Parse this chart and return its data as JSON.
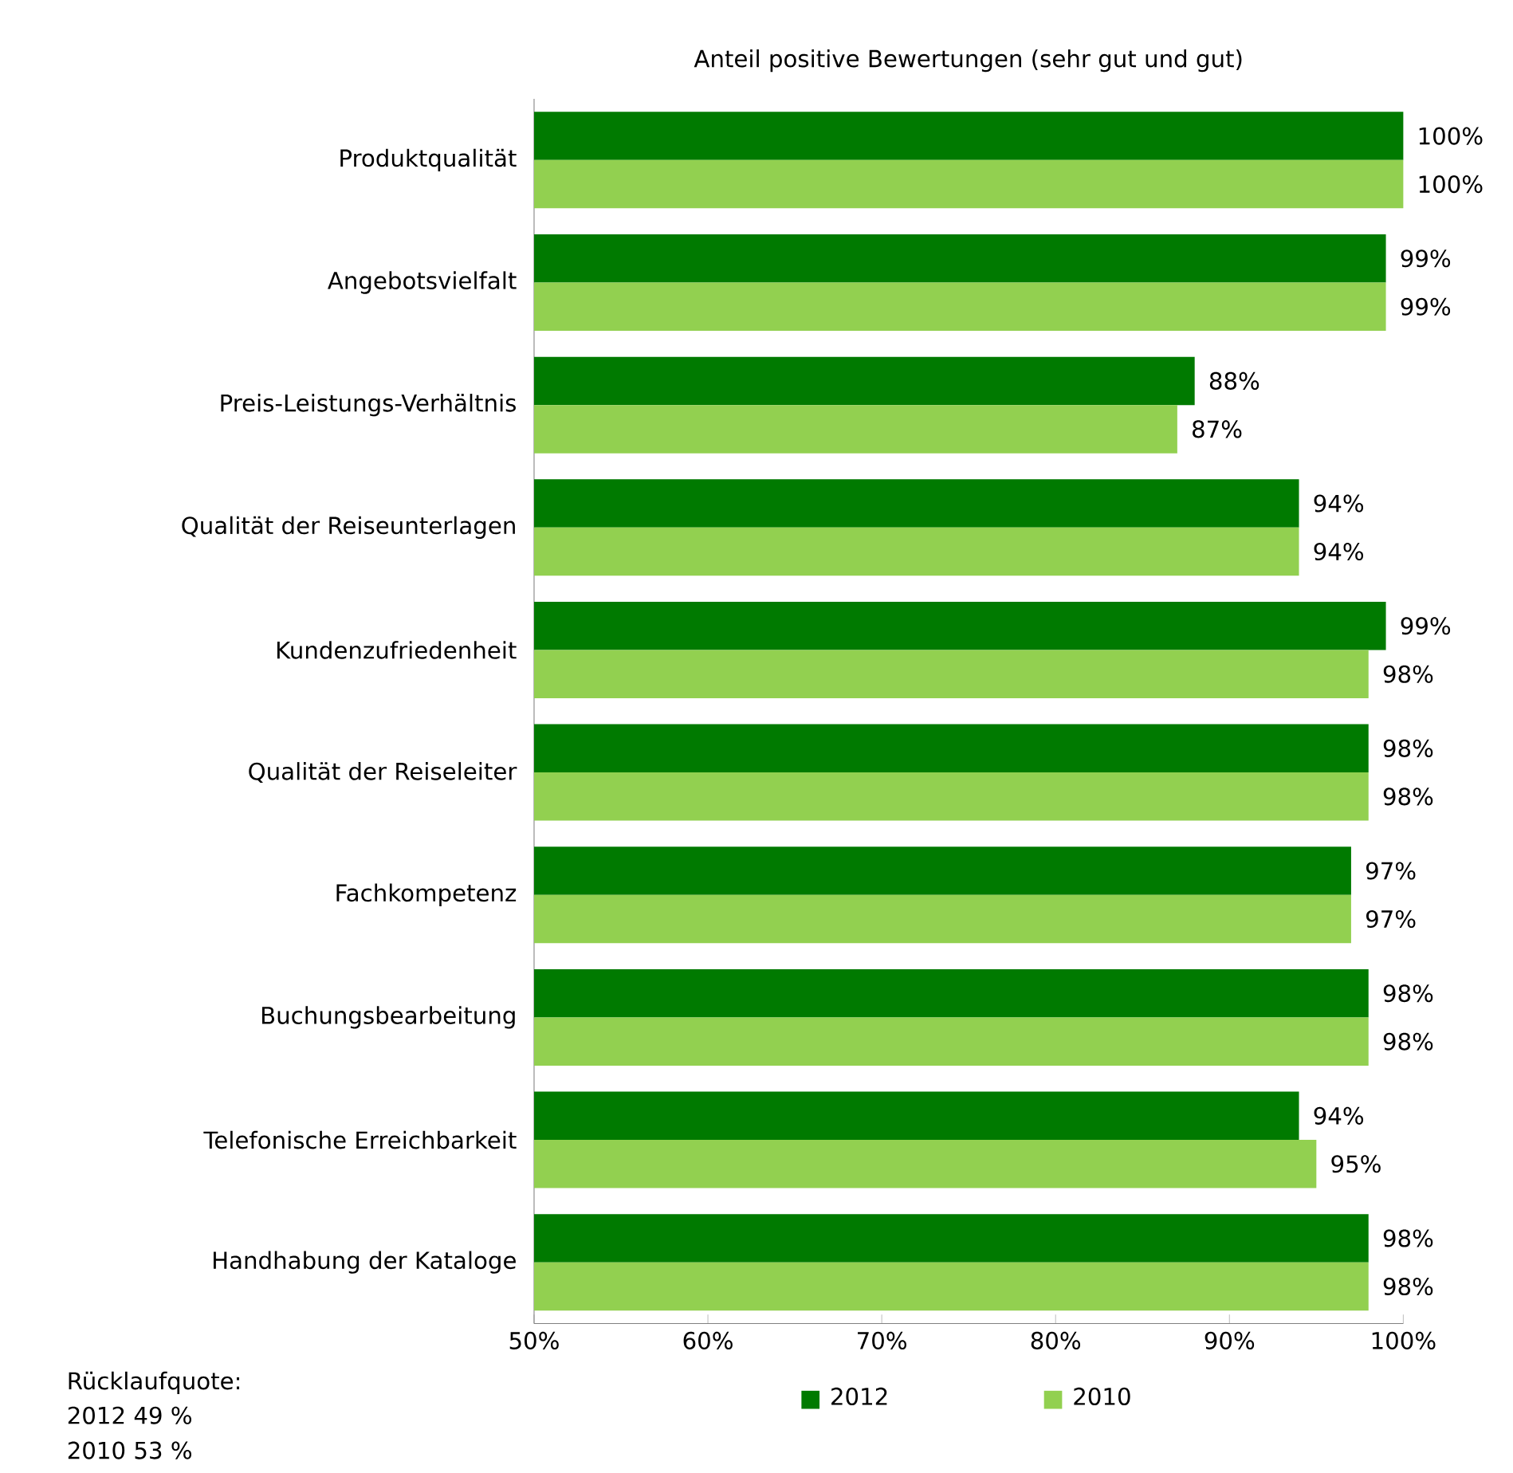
{
  "chart_data": {
    "type": "bar",
    "orientation": "horizontal",
    "title": "Anteil positive Bewertungen (sehr gut und gut)",
    "categories": [
      "Produktqualität",
      "Angebotsvielfalt",
      "Preis-Leistungs-Verhältnis",
      "Qualität der Reiseunterlagen",
      "Kundenzufriedenheit",
      "Qualität der Reiseleiter",
      "Fachkompetenz",
      "Buchungsbearbeitung",
      "Telefonische Erreichbarkeit",
      "Handhabung der Kataloge"
    ],
    "series": [
      {
        "name": "2012",
        "color": "#007a00",
        "values": [
          100,
          99,
          88,
          94,
          99,
          98,
          97,
          98,
          94,
          98
        ],
        "value_labels": [
          "100%",
          "99%",
          "88%",
          "94%",
          "99%",
          "98%",
          "97%",
          "98%",
          "94%",
          "98%"
        ]
      },
      {
        "name": "2010",
        "color": "#92d050",
        "values": [
          100,
          99,
          87,
          94,
          98,
          98,
          97,
          98,
          95,
          98
        ],
        "value_labels": [
          "100%",
          "99%",
          "87%",
          "94%",
          "98%",
          "98%",
          "97%",
          "98%",
          "95%",
          "98%"
        ]
      }
    ],
    "xlim": [
      50,
      100
    ],
    "xticks": [
      {
        "value": 50,
        "label": "50%"
      },
      {
        "value": 60,
        "label": "60%"
      },
      {
        "value": 70,
        "label": "70%"
      },
      {
        "value": 80,
        "label": "80%"
      },
      {
        "value": 90,
        "label": "90%"
      },
      {
        "value": 100,
        "label": "100%"
      }
    ],
    "legend": "bottom",
    "annotations": [
      "Rücklaufquote:",
      "2012 49 %",
      "2010 53 %"
    ]
  }
}
